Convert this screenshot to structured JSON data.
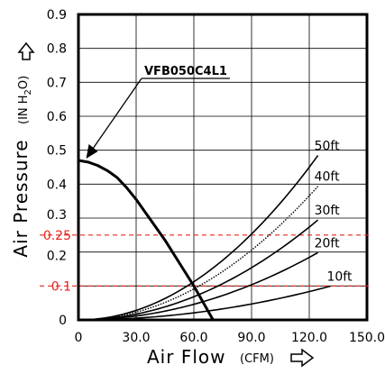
{
  "chart_data": {
    "type": "line",
    "title": "",
    "xlabel": "Air Flow",
    "xlabel_unit": "(CFM)",
    "ylabel": "Air Pressure",
    "ylabel_unit": "(IN H",
    "ylabel_unit_sub": "2",
    "ylabel_unit_end": "O)",
    "xlim": [
      0,
      150
    ],
    "ylim": [
      0,
      0.9
    ],
    "x_ticks": [
      "0",
      "30.0",
      "60.0",
      "90.0",
      "120.0",
      "150.0"
    ],
    "x_tick_values": [
      0,
      30,
      60,
      90,
      120,
      150
    ],
    "y_ticks": [
      "0",
      "0.1",
      "0.2",
      "0.3",
      "0.4",
      "0.5",
      "0.6",
      "0.7",
      "0.8",
      "0.9"
    ],
    "y_tick_values": [
      0,
      0.1,
      0.2,
      0.3,
      0.4,
      0.5,
      0.6,
      0.7,
      0.8,
      0.9
    ],
    "grid": true,
    "fan_curve": {
      "name": "VFB050C4L1",
      "points": [
        [
          0,
          0.47
        ],
        [
          5,
          0.465
        ],
        [
          10,
          0.455
        ],
        [
          15,
          0.44
        ],
        [
          20,
          0.42
        ],
        [
          25,
          0.39
        ],
        [
          30,
          0.355
        ],
        [
          35,
          0.315
        ],
        [
          40,
          0.275
        ],
        [
          45,
          0.235
        ],
        [
          50,
          0.19
        ],
        [
          55,
          0.145
        ],
        [
          60,
          0.1
        ],
        [
          65,
          0.05
        ],
        [
          70,
          0.0
        ]
      ]
    },
    "system_curves": [
      {
        "name": "50ft",
        "k": 3.125e-05,
        "x_end": 124.5,
        "style": "solid"
      },
      {
        "name": "40ft",
        "k": 2.54e-05,
        "x_end": 124.5,
        "style": "dotted"
      },
      {
        "name": "30ft",
        "k": 1.9e-05,
        "x_end": 124.5,
        "style": "solid"
      },
      {
        "name": "20ft",
        "k": 1.28e-05,
        "x_end": 124.5,
        "style": "solid"
      },
      {
        "name": "10ft",
        "k": 5.8e-06,
        "x_end": 131,
        "style": "solid"
      }
    ],
    "reference_lines": [
      {
        "label": "0.25",
        "value": 0.25,
        "color": "#e8261b",
        "style": "dashed"
      },
      {
        "label": "0.1",
        "value": 0.1,
        "color": "#e8261b",
        "style": "dashed"
      }
    ]
  }
}
